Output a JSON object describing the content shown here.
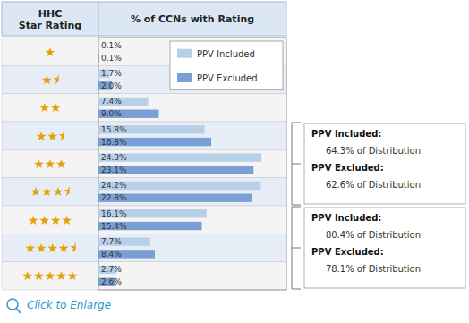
{
  "chart_data": {
    "type": "bar",
    "orientation": "horizontal",
    "x_label": "% of CCNs with Rating",
    "y_label": "HHC\nStar Rating",
    "categories": [
      "★",
      "★⯨",
      "★★",
      "★★⯨",
      "★★★",
      "★★★⯨",
      "★★★★",
      "★★★★⯨",
      "★★★★★"
    ],
    "series": [
      {
        "name": "PPV Included",
        "color": "#b8cfe8",
        "values": [
          0.1,
          1.7,
          7.4,
          15.8,
          24.3,
          24.2,
          16.1,
          7.7,
          2.7
        ],
        "value_labels": [
          "0.1%",
          "1.7%",
          "7.4%",
          "15.8%",
          "24.3%",
          "24.2%",
          "16.1%",
          "7.7%",
          "2.7%"
        ]
      },
      {
        "name": "PPV Excluded",
        "color": "#7a9fd4",
        "values": [
          0.1,
          2.0,
          9.0,
          16.8,
          23.1,
          22.8,
          15.4,
          8.4,
          2.6
        ],
        "value_labels": [
          "0.1%",
          "2.0%",
          "9.0%",
          "16.8%",
          "23.1%",
          "22.8%",
          "15.4%",
          "8.4%",
          "2.6%"
        ]
      }
    ],
    "xlim": [
      0,
      28
    ],
    "data_labels": true,
    "tick_labels": "y",
    "grid": false,
    "legend": "upper right",
    "annotations": [
      {
        "lines": [
          "PPV Included:",
          "     64.3% of Distribution",
          "PPV Excluded:",
          "     62.6% of Distribution"
        ]
      },
      {
        "lines": [
          "PPV Included:",
          "     80.4% of Distribution",
          "PPV Excluded:",
          "     78.1% of Distribution"
        ]
      },
      {
        "text": "Click to Enlarge"
      }
    ]
  }
}
